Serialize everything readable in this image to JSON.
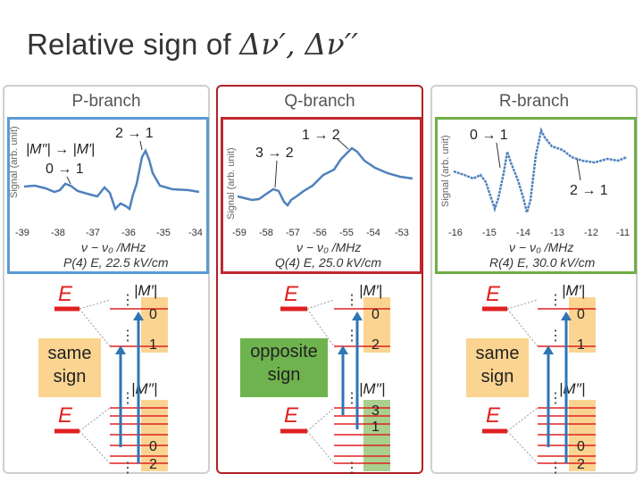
{
  "title": {
    "text": "Relative sign of ",
    "math": "Δν′, Δν′′"
  },
  "panels": [
    {
      "name": "P-branch",
      "ylabel": "Signal (arb. unit)",
      "ticks": [
        "-39",
        "-38",
        "-37",
        "-36",
        "-35",
        "-34"
      ],
      "xlabel": "ν − ν₀ /MHz",
      "condition": "P(4) E, 22.5 kV/cm",
      "annotations": [
        "|M′′| → |M′|",
        "2 → 1",
        "0 → 1"
      ],
      "badge": [
        "same",
        "sign"
      ],
      "upper_m": [
        "0",
        "1"
      ],
      "lower_m": [
        "0",
        "2"
      ]
    },
    {
      "name": "Q-branch",
      "ylabel": "Signal (arb. unit)",
      "ticks": [
        "-59",
        "-58",
        "-57",
        "-56",
        "-55",
        "-54",
        "-53"
      ],
      "xlabel": "ν − ν₀ /MHz",
      "condition": "Q(4) E, 25.0 kV/cm",
      "annotations": [
        "1 → 2",
        "3 → 2"
      ],
      "badge": [
        "opposite",
        "sign"
      ],
      "upper_m": [
        "0",
        "2"
      ],
      "lower_m": [
        "3",
        "1"
      ]
    },
    {
      "name": "R-branch",
      "ylabel": "Signal (arb. unit)",
      "ticks": [
        "-16",
        "-15",
        "-14",
        "-13",
        "-12",
        "-11"
      ],
      "xlabel": "ν − ν₀ /MHz",
      "condition": "R(4) E, 30.0 kV/cm",
      "annotations": [
        "0 → 1",
        "2 → 1"
      ],
      "badge": [
        "same",
        "sign"
      ],
      "upper_m": [
        "0",
        "1"
      ],
      "lower_m": [
        "0",
        "2"
      ]
    }
  ],
  "energy_label": "E",
  "upper_label": "|M′|",
  "lower_label": "|M′′|",
  "dots": "⋮",
  "colors": {
    "p_border": "#5b9bd5",
    "q_border": "#c0282d",
    "r_border": "#70ad47",
    "trace": "#4f81bd",
    "level": "#e02020",
    "arrow": "#2e75b6",
    "same_badge": "#fbd491",
    "opp_badge": "#6fb34e"
  }
}
